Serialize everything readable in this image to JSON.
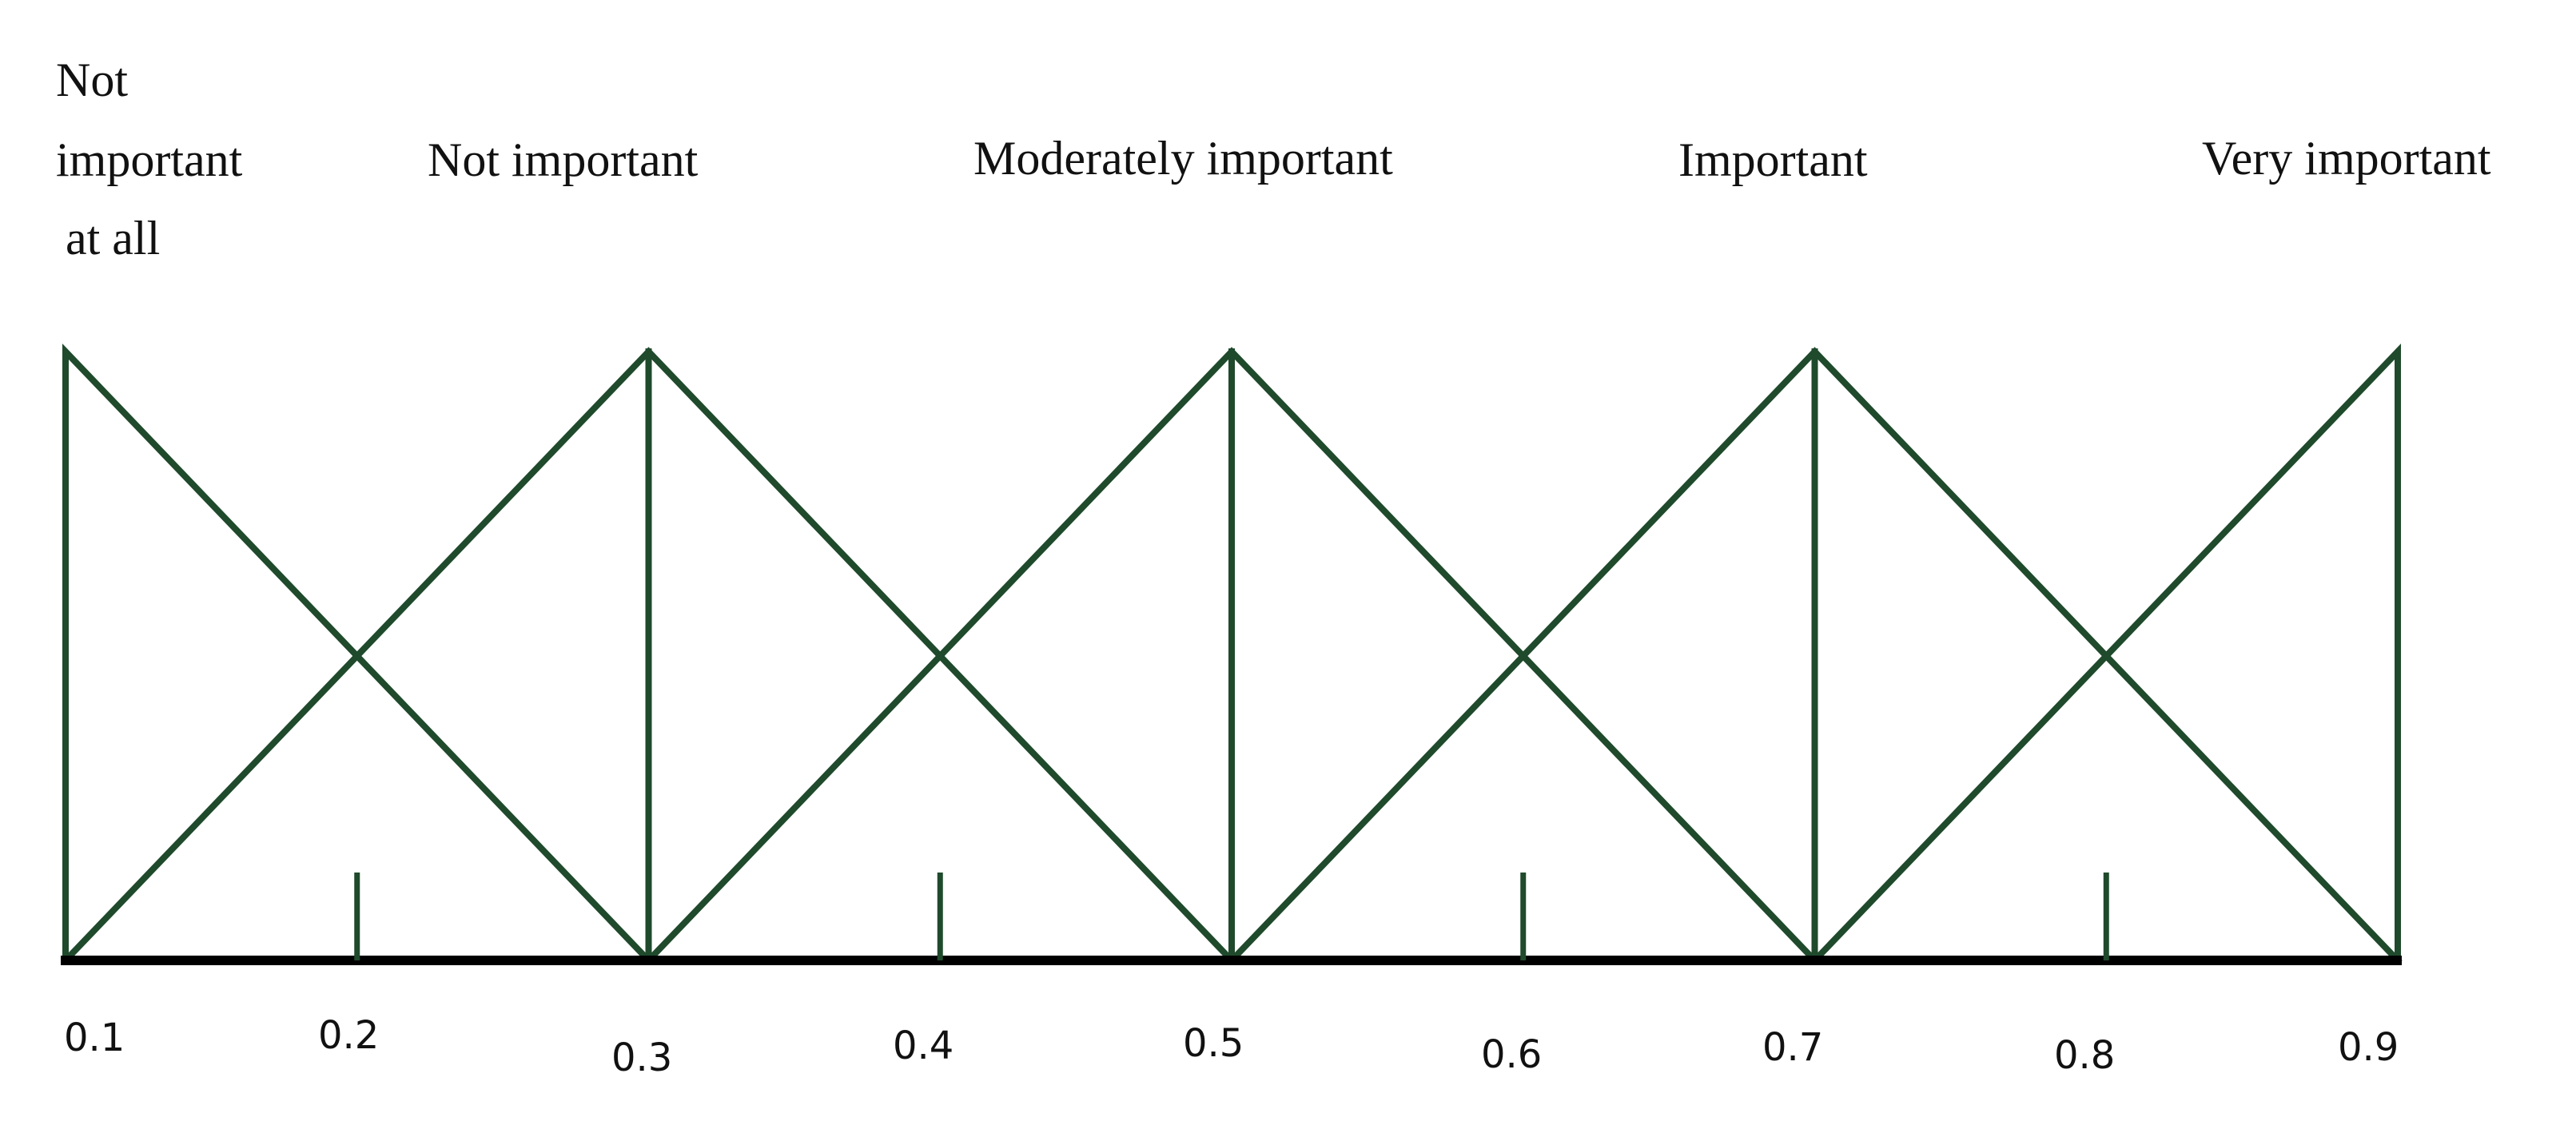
{
  "diagram": {
    "term_labels": {
      "not_important_at_all": [
        "Not",
        "important",
        "at all"
      ],
      "not_important": "Not important",
      "moderately_important": "Moderately important",
      "important": "Important",
      "very_important": "Very important"
    },
    "tick_labels": [
      "0.1",
      "0.2",
      "0.3",
      "0.4",
      "0.5",
      "0.6",
      "0.7",
      "0.8",
      "0.9"
    ],
    "line_color": "#1f4a2c",
    "axis_color": "#000000"
  },
  "chart_data": {
    "type": "line",
    "x_range": [
      0.1,
      0.9
    ],
    "y_range": [
      0,
      1
    ],
    "series": [
      {
        "name": "Not important at all",
        "x": [
          0.1,
          0.1,
          0.3
        ],
        "y": [
          0,
          1,
          0
        ]
      },
      {
        "name": "Not important",
        "x": [
          0.1,
          0.3,
          0.5
        ],
        "y": [
          0,
          1,
          0
        ]
      },
      {
        "name": "Moderately important",
        "x": [
          0.3,
          0.5,
          0.7
        ],
        "y": [
          0,
          1,
          0
        ]
      },
      {
        "name": "Important",
        "x": [
          0.5,
          0.7,
          0.9
        ],
        "y": [
          0,
          1,
          0
        ]
      },
      {
        "name": "Very important",
        "x": [
          0.7,
          0.9,
          0.9
        ],
        "y": [
          0,
          1,
          0
        ]
      }
    ],
    "peak_verticals_x": [
      0.3,
      0.5,
      0.7
    ],
    "minor_ticks_x": [
      0.2,
      0.4,
      0.6,
      0.8
    ]
  }
}
